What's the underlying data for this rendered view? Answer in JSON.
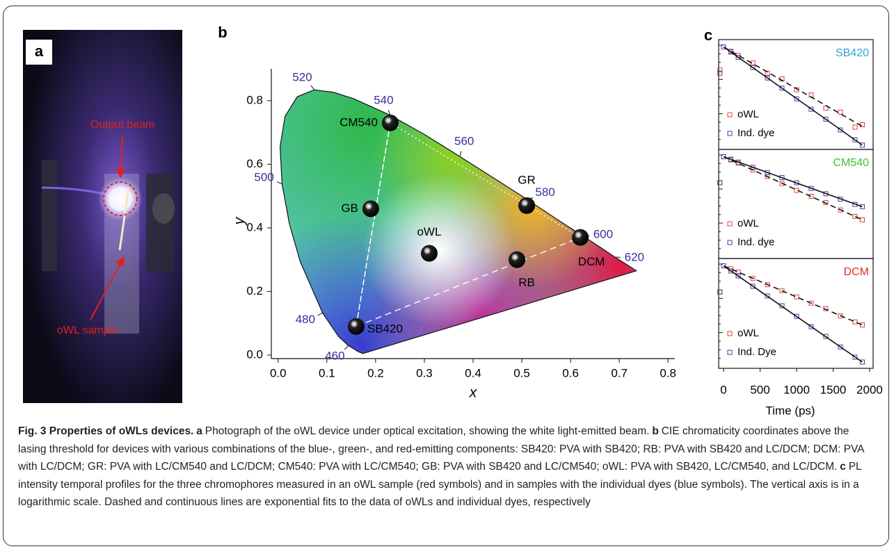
{
  "panel_a": {
    "label": "a",
    "annotations": [
      "Output beam",
      "oWL sample"
    ]
  },
  "chart_data": [
    {
      "type": "scatter",
      "label": "b",
      "xlabel": "x",
      "ylabel": "y",
      "xlim": [
        -0.014,
        0.814
      ],
      "ylim": [
        -0.011,
        0.9
      ],
      "xticks": [
        {
          "value": 0,
          "label": "0.0"
        },
        0.1,
        0.2,
        0.3,
        0.4,
        0.5,
        0.6,
        0.7,
        0.8
      ],
      "yticks": [
        {
          "value": 0,
          "label": "0.0"
        },
        0.2,
        0.4,
        0.6,
        0.8
      ],
      "categories": [
        "CM540",
        "GB",
        "oWL",
        "GR",
        "DCM",
        "RB",
        "SB420"
      ],
      "x": [
        0.23,
        0.19,
        0.31,
        0.51,
        0.62,
        0.49,
        0.16
      ],
      "values": [
        0.73,
        0.46,
        0.32,
        0.47,
        0.37,
        0.3,
        0.09
      ],
      "wavelengths": [
        460,
        480,
        500,
        520,
        540,
        560,
        580,
        600,
        620
      ]
    },
    {
      "type": "scatter",
      "yscale": "log",
      "title": "SB420",
      "title_color": "#2fa0d8",
      "xlim": [
        -67,
        2048
      ],
      "ylim": [
        0.009,
        1.4
      ],
      "x": [
        -50,
        0,
        100,
        200,
        400,
        600,
        800,
        1000,
        1200,
        1400,
        1600,
        1800,
        1900
      ],
      "series": [
        {
          "name": "oWL",
          "color": "#e0403a",
          "values": [
            0.35,
            1.0,
            0.82,
            0.68,
            0.48,
            0.3,
            0.23,
            0.14,
            0.11,
            0.06,
            0.05,
            0.025,
            0.028
          ]
        },
        {
          "name": "Ind. dye",
          "color": "#4a3aa0",
          "values": [
            0.3,
            1.0,
            0.79,
            0.62,
            0.39,
            0.24,
            0.15,
            0.092,
            0.057,
            0.036,
            0.022,
            0.014,
            0.011
          ]
        }
      ],
      "fits": [
        {
          "style": "dashed",
          "x": [
            0,
            1900
          ],
          "values": [
            1.0,
            0.026
          ]
        },
        {
          "style": "solid",
          "x": [
            0,
            1900
          ],
          "values": [
            1.0,
            0.011
          ]
        }
      ]
    },
    {
      "type": "scatter",
      "yscale": "log",
      "title": "CM540",
      "title_color": "#40c030",
      "xlim": [
        -67,
        2048
      ],
      "ylim": [
        0.009,
        1.4
      ],
      "x": [
        -50,
        0,
        100,
        200,
        400,
        600,
        800,
        1000,
        1200,
        1400,
        1600,
        1800,
        1900
      ],
      "series": [
        {
          "name": "oWL",
          "color": "#e0403a",
          "values": [
            0.3,
            1.0,
            0.86,
            0.74,
            0.54,
            0.4,
            0.29,
            0.21,
            0.16,
            0.12,
            0.085,
            0.063,
            0.054
          ]
        },
        {
          "name": "Ind. dye",
          "color": "#4a3aa0",
          "values": [
            0.3,
            1.0,
            0.89,
            0.78,
            0.61,
            0.48,
            0.38,
            0.3,
            0.23,
            0.18,
            0.14,
            0.11,
            0.099
          ]
        }
      ],
      "fits": [
        {
          "style": "dashed",
          "x": [
            0,
            1900
          ],
          "values": [
            1.0,
            0.054
          ]
        },
        {
          "style": "solid",
          "x": [
            0,
            1900
          ],
          "values": [
            1.0,
            0.099
          ]
        }
      ]
    },
    {
      "type": "scatter",
      "yscale": "log",
      "title": "DCM",
      "title_color": "#e03020",
      "xlim": [
        -67,
        2048
      ],
      "ylim": [
        0.009,
        1.4
      ],
      "xlabel": "Time (ps)",
      "xticks": [
        0,
        500,
        1000,
        1500,
        2000
      ],
      "x": [
        -50,
        0,
        100,
        200,
        400,
        600,
        800,
        1000,
        1200,
        1400,
        1600,
        1800,
        1900
      ],
      "series": [
        {
          "name": "oWL",
          "color": "#e0403a",
          "values": [
            0.3,
            1.0,
            0.87,
            0.75,
            0.56,
            0.42,
            0.32,
            0.24,
            0.18,
            0.14,
            0.1,
            0.076,
            0.066
          ]
        },
        {
          "name": "Ind. Dye",
          "color": "#4a3aa0",
          "values": [
            0.3,
            1.0,
            0.79,
            0.63,
            0.39,
            0.25,
            0.16,
            0.098,
            0.061,
            0.039,
            0.024,
            0.015,
            0.012
          ]
        }
      ],
      "fits": [
        {
          "style": "dashed",
          "x": [
            0,
            1900
          ],
          "values": [
            1.0,
            0.066
          ]
        },
        {
          "style": "solid",
          "x": [
            0,
            1900
          ],
          "values": [
            1.0,
            0.012
          ]
        }
      ]
    }
  ],
  "caption": {
    "title": "Fig. 3 Properties of oWLs devices.",
    "parts": [
      {
        "label": "a",
        "text": "Photograph of the oWL device under optical excitation, showing the white light-emitted beam."
      },
      {
        "label": "b",
        "text": "CIE chromaticity coordinates above the lasing threshold for devices with various combinations of the blue-, green-, and red-emitting components: SB420: PVA with SB420; RB: PVA with SB420 and LC/DCM; DCM: PVA with LC/DCM; GR: PVA with LC/CM540 and LC/DCM; CM540: PVA with LC/CM540; GB: PVA with SB420 and LC/CM540; oWL: PVA with SB420, LC/CM540, and LC/DCM."
      },
      {
        "label": "c",
        "text": "PL intensity temporal profiles for the three chromophores measured in an oWL sample (red symbols) and in samples with the individual dyes (blue symbols). The vertical axis is in a logarithmic scale. Dashed and continuous lines are exponential fits to the data of oWLs and individual dyes, respectively"
      }
    ]
  }
}
